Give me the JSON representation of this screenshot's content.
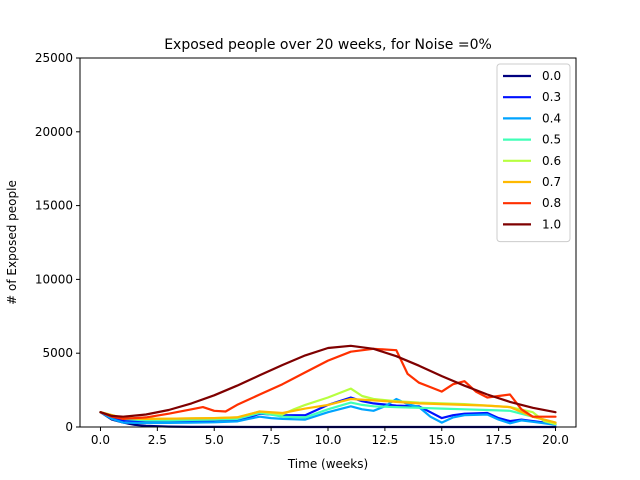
{
  "chart_data": {
    "type": "line",
    "title": "Exposed people over 20 weeks, for Noise =0%",
    "xlabel": "Time (weeks)",
    "ylabel": "# of Exposed people",
    "xlim": [
      -0.9,
      20.9
    ],
    "ylim": [
      0,
      25000
    ],
    "xticks": [
      0.0,
      2.5,
      5.0,
      7.5,
      10.0,
      12.5,
      15.0,
      17.5,
      20.0
    ],
    "xtick_labels": [
      "0.0",
      "2.5",
      "5.0",
      "7.5",
      "10.0",
      "12.5",
      "15.0",
      "17.5",
      "20.0"
    ],
    "yticks": [
      0,
      5000,
      10000,
      15000,
      20000,
      25000
    ],
    "ytick_labels": [
      "0",
      "5000",
      "10000",
      "15000",
      "20000",
      "25000"
    ],
    "grid": false,
    "legend_position": "top-right",
    "series": [
      {
        "name": "0.0",
        "color": "#00007f",
        "x": [
          0,
          0.5,
          1,
          1.5,
          2,
          3,
          4,
          5,
          7,
          10,
          13,
          16,
          20
        ],
        "y": [
          1000,
          500,
          300,
          150,
          80,
          30,
          10,
          5,
          0,
          0,
          0,
          0,
          0
        ]
      },
      {
        "name": "0.3",
        "color": "#0010ff",
        "x": [
          0,
          0.5,
          1,
          1.5,
          2,
          2.5,
          3,
          4,
          5,
          6,
          6.5,
          7,
          7.5,
          8,
          8.5,
          9,
          10,
          11,
          11.5,
          12,
          13,
          14,
          14.5,
          15,
          15.5,
          16,
          17,
          17.5,
          18,
          18.5,
          19,
          20
        ],
        "y": [
          1000,
          650,
          450,
          400,
          380,
          390,
          400,
          420,
          450,
          480,
          650,
          900,
          850,
          800,
          800,
          800,
          1500,
          2000,
          1750,
          1600,
          1450,
          1400,
          1000,
          600,
          800,
          900,
          950,
          600,
          400,
          500,
          400,
          200
        ]
      },
      {
        "name": "0.4",
        "color": "#00a4ff",
        "x": [
          0,
          0.5,
          1,
          1.5,
          2,
          3,
          4,
          5,
          6,
          6.5,
          7,
          7.5,
          8,
          9,
          10,
          11,
          11.5,
          12,
          12.5,
          13,
          13.5,
          14,
          14.5,
          15,
          15.5,
          16,
          17,
          17.5,
          18,
          18.5,
          19,
          20
        ],
        "y": [
          1000,
          550,
          300,
          280,
          270,
          280,
          300,
          320,
          380,
          550,
          700,
          600,
          550,
          500,
          1000,
          1400,
          1200,
          1100,
          1400,
          1900,
          1550,
          1350,
          700,
          300,
          650,
          800,
          850,
          500,
          250,
          450,
          350,
          150
        ]
      },
      {
        "name": "0.5",
        "color": "#40ffb7",
        "x": [
          0,
          1,
          2,
          3,
          4,
          5,
          6,
          7,
          7.5,
          8,
          9,
          10,
          11,
          11.5,
          12,
          13,
          14,
          15,
          16,
          17,
          18,
          19,
          20
        ],
        "y": [
          1000,
          550,
          450,
          450,
          480,
          500,
          550,
          950,
          850,
          700,
          650,
          1200,
          1650,
          1500,
          1400,
          1350,
          1300,
          1250,
          1200,
          1150,
          1100,
          700,
          300
        ]
      },
      {
        "name": "0.6",
        "color": "#b7ff40",
        "x": [
          0,
          1,
          2,
          3,
          4,
          5,
          6,
          7,
          7.5,
          8,
          8.5,
          9,
          10,
          11,
          11.5,
          12,
          13,
          14,
          15,
          16,
          17,
          18,
          19,
          19.5,
          20
        ],
        "y": [
          1000,
          600,
          550,
          560,
          580,
          600,
          650,
          1050,
          950,
          850,
          1200,
          1500,
          2000,
          2600,
          2100,
          1900,
          1750,
          1650,
          1600,
          1550,
          1450,
          1350,
          1000,
          400,
          200
        ]
      },
      {
        "name": "0.7",
        "color": "#ffb900",
        "x": [
          0,
          1,
          2,
          3,
          4,
          5,
          6,
          7,
          8,
          9,
          10,
          11,
          12,
          13,
          14,
          15,
          16,
          17,
          18,
          19,
          20
        ],
        "y": [
          1000,
          600,
          550,
          560,
          580,
          600,
          650,
          1050,
          950,
          1250,
          1500,
          1900,
          1800,
          1700,
          1600,
          1550,
          1500,
          1450,
          1350,
          700,
          300
        ]
      },
      {
        "name": "0.8",
        "color": "#ff3000",
        "x": [
          0,
          0.5,
          1,
          2,
          3,
          4,
          4.5,
          5,
          5.5,
          6,
          7,
          8,
          9,
          10,
          11,
          12,
          12.5,
          13,
          13.5,
          14,
          14.5,
          15,
          15.5,
          16,
          16.5,
          17,
          17.5,
          18,
          18.5,
          19,
          20
        ],
        "y": [
          1000,
          700,
          550,
          650,
          900,
          1200,
          1350,
          1100,
          1050,
          1500,
          2200,
          2900,
          3700,
          4500,
          5100,
          5300,
          5250,
          5200,
          3600,
          3000,
          2700,
          2400,
          2900,
          3100,
          2400,
          2000,
          2100,
          2200,
          1200,
          700,
          700
        ]
      },
      {
        "name": "1.0",
        "color": "#7f0000",
        "x": [
          0,
          0.5,
          1,
          2,
          3,
          4,
          5,
          6,
          7,
          8,
          9,
          10,
          11,
          12,
          13,
          14,
          15,
          16,
          17,
          18,
          19,
          20
        ],
        "y": [
          1000,
          750,
          700,
          850,
          1150,
          1600,
          2150,
          2800,
          3500,
          4200,
          4850,
          5350,
          5500,
          5300,
          4800,
          4150,
          3450,
          2800,
          2200,
          1700,
          1300,
          1000
        ]
      }
    ]
  }
}
